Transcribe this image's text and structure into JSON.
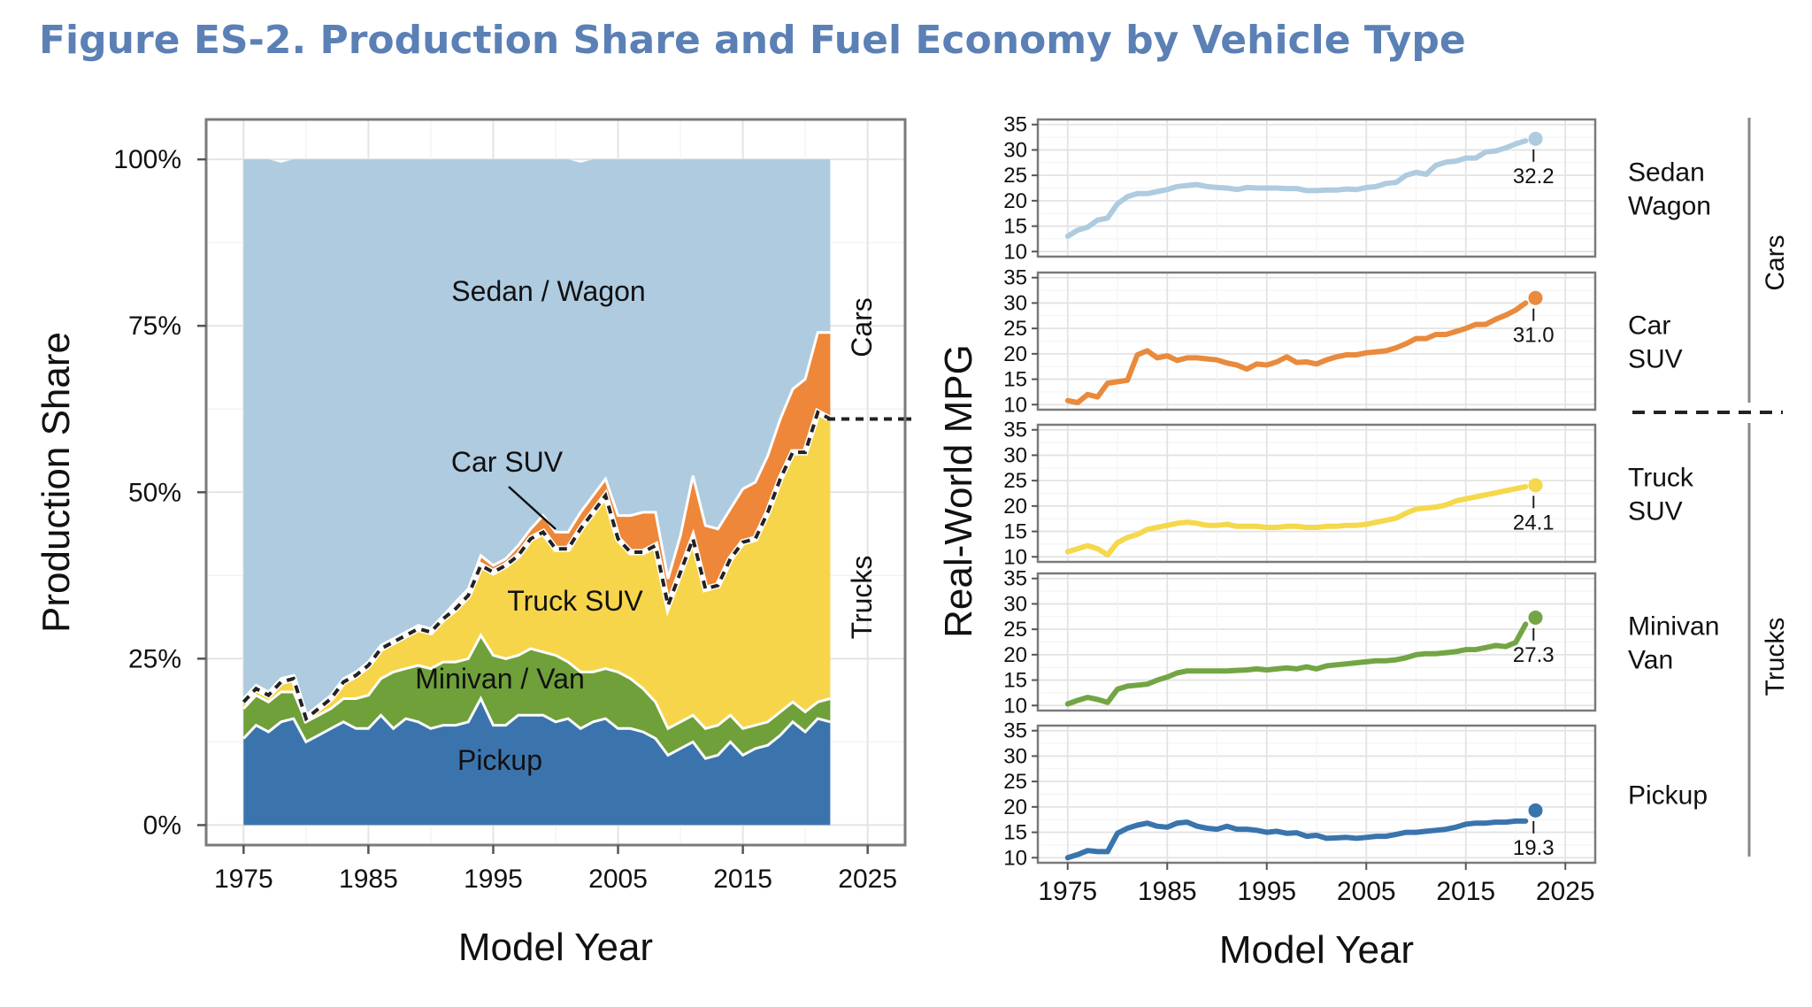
{
  "title": "Figure ES-2. Production Share and Fuel Economy by Vehicle Type",
  "chart_data": [
    {
      "type": "area",
      "stacked": true,
      "xlabel": "Model Year",
      "ylabel": "Production Share",
      "xlim": [
        1972,
        2028
      ],
      "ylim": [
        -0.03,
        1.06
      ],
      "xticks": [
        1975,
        1985,
        1995,
        2005,
        2015,
        2025
      ],
      "yticks": [
        0,
        0.25,
        0.5,
        0.75,
        1.0
      ],
      "ytick_labels": [
        "0%",
        "25%",
        "50%",
        "75%",
        "100%"
      ],
      "grid": true,
      "x": [
        1975,
        1976,
        1977,
        1978,
        1979,
        1980,
        1981,
        1982,
        1983,
        1984,
        1985,
        1986,
        1987,
        1988,
        1989,
        1990,
        1991,
        1992,
        1993,
        1994,
        1995,
        1996,
        1997,
        1998,
        1999,
        2000,
        2001,
        2002,
        2003,
        2004,
        2005,
        2006,
        2007,
        2008,
        2009,
        2010,
        2011,
        2012,
        2013,
        2014,
        2015,
        2016,
        2017,
        2018,
        2019,
        2020,
        2021,
        2022
      ],
      "series": [
        {
          "name": "Pickup",
          "color": "#3b74ad",
          "values": [
            0.13,
            0.15,
            0.14,
            0.155,
            0.16,
            0.125,
            0.135,
            0.145,
            0.155,
            0.145,
            0.145,
            0.165,
            0.145,
            0.16,
            0.155,
            0.145,
            0.15,
            0.15,
            0.155,
            0.19,
            0.15,
            0.15,
            0.165,
            0.165,
            0.165,
            0.155,
            0.16,
            0.145,
            0.155,
            0.16,
            0.145,
            0.145,
            0.14,
            0.13,
            0.105,
            0.115,
            0.125,
            0.1,
            0.105,
            0.125,
            0.105,
            0.115,
            0.12,
            0.135,
            0.155,
            0.14,
            0.16,
            0.155
          ]
        },
        {
          "name": "Minivan / Van",
          "color": "#6fa03a",
          "values": [
            0.045,
            0.045,
            0.045,
            0.045,
            0.04,
            0.03,
            0.03,
            0.03,
            0.035,
            0.045,
            0.05,
            0.055,
            0.085,
            0.075,
            0.085,
            0.09,
            0.095,
            0.095,
            0.095,
            0.095,
            0.105,
            0.1,
            0.09,
            0.1,
            0.095,
            0.1,
            0.085,
            0.085,
            0.075,
            0.075,
            0.085,
            0.075,
            0.065,
            0.055,
            0.04,
            0.04,
            0.04,
            0.045,
            0.045,
            0.04,
            0.04,
            0.035,
            0.035,
            0.035,
            0.03,
            0.03,
            0.025,
            0.035
          ]
        },
        {
          "name": "Truck SUV",
          "color": "#f7d54a",
          "values": [
            0.01,
            0.01,
            0.01,
            0.015,
            0.02,
            0.005,
            0.01,
            0.015,
            0.025,
            0.035,
            0.045,
            0.045,
            0.045,
            0.05,
            0.055,
            0.055,
            0.065,
            0.08,
            0.095,
            0.105,
            0.125,
            0.14,
            0.15,
            0.165,
            0.18,
            0.16,
            0.17,
            0.215,
            0.24,
            0.26,
            0.2,
            0.19,
            0.205,
            0.235,
            0.185,
            0.225,
            0.265,
            0.21,
            0.21,
            0.235,
            0.28,
            0.28,
            0.315,
            0.35,
            0.375,
            0.39,
            0.435,
            0.42
          ]
        },
        {
          "name": "Car SUV",
          "color": "#ee873a",
          "values": [
            0.005,
            0.005,
            0.005,
            0.005,
            0.005,
            0.005,
            0.005,
            0.005,
            0.005,
            0.005,
            0.005,
            0.005,
            0.005,
            0.005,
            0.005,
            0.005,
            0.005,
            0.01,
            0.01,
            0.015,
            0.01,
            0.01,
            0.015,
            0.015,
            0.025,
            0.025,
            0.025,
            0.025,
            0.025,
            0.025,
            0.035,
            0.055,
            0.06,
            0.05,
            0.04,
            0.055,
            0.095,
            0.095,
            0.085,
            0.075,
            0.08,
            0.085,
            0.085,
            0.09,
            0.095,
            0.11,
            0.12,
            0.13
          ]
        },
        {
          "name": "Sedan / Wagon",
          "color": "#aecbe0",
          "values": [
            0.81,
            0.79,
            0.8,
            0.775,
            0.775,
            0.835,
            0.82,
            0.805,
            0.78,
            0.77,
            0.755,
            0.73,
            0.72,
            0.71,
            0.7,
            0.705,
            0.685,
            0.665,
            0.645,
            0.595,
            0.61,
            0.6,
            0.58,
            0.555,
            0.535,
            0.56,
            0.56,
            0.525,
            0.505,
            0.48,
            0.535,
            0.535,
            0.53,
            0.53,
            0.63,
            0.565,
            0.475,
            0.55,
            0.555,
            0.525,
            0.495,
            0.485,
            0.445,
            0.39,
            0.345,
            0.33,
            0.26,
            0.26
          ]
        }
      ],
      "annotations": {
        "sedan": "Sedan / Wagon",
        "carsuv": "Car SUV",
        "trucksuv": "Truck SUV",
        "minivan": "Minivan / Van",
        "pickup": "Pickup"
      },
      "side_labels": {
        "cars": "Cars",
        "trucks": "Trucks"
      }
    },
    {
      "type": "line",
      "facets": true,
      "xlabel": "Model Year",
      "ylabel": "Real-World MPG",
      "xlim": [
        1972,
        2028
      ],
      "ylim": [
        9,
        36
      ],
      "xticks": [
        1975,
        1985,
        1995,
        2005,
        2015,
        2025
      ],
      "yticks": [
        10,
        15,
        20,
        25,
        30,
        35
      ],
      "grid": true,
      "x": [
        1975,
        1976,
        1977,
        1978,
        1979,
        1980,
        1981,
        1982,
        1983,
        1984,
        1985,
        1986,
        1987,
        1988,
        1989,
        1990,
        1991,
        1992,
        1993,
        1994,
        1995,
        1996,
        1997,
        1998,
        1999,
        2000,
        2001,
        2002,
        2003,
        2004,
        2005,
        2006,
        2007,
        2008,
        2009,
        2010,
        2011,
        2012,
        2013,
        2014,
        2015,
        2016,
        2017,
        2018,
        2019,
        2020,
        2021
      ],
      "series": [
        {
          "name": "Sedan Wagon",
          "color": "#aecbe0",
          "end_value": 32.2,
          "end_label": "32.2",
          "values": [
            13.0,
            14.2,
            14.8,
            16.2,
            16.6,
            19.4,
            20.8,
            21.4,
            21.4,
            21.8,
            22.2,
            22.8,
            23.0,
            23.2,
            22.8,
            22.6,
            22.5,
            22.2,
            22.6,
            22.5,
            22.5,
            22.5,
            22.4,
            22.4,
            22.0,
            22.0,
            22.1,
            22.1,
            22.3,
            22.2,
            22.6,
            22.8,
            23.4,
            23.6,
            25.0,
            25.6,
            25.2,
            27.0,
            27.6,
            27.8,
            28.4,
            28.4,
            29.6,
            29.8,
            30.4,
            31.2,
            31.8
          ]
        },
        {
          "name": "Car SUV",
          "color": "#e98a3d",
          "end_value": 31.0,
          "end_label": "31.0",
          "values": [
            10.8,
            10.4,
            12.0,
            11.5,
            14.2,
            14.5,
            14.8,
            19.8,
            20.6,
            19.2,
            19.6,
            18.7,
            19.2,
            19.2,
            19.0,
            18.8,
            18.2,
            17.8,
            17.0,
            18.0,
            17.8,
            18.4,
            19.4,
            18.3,
            18.4,
            18.0,
            18.8,
            19.4,
            19.8,
            19.8,
            20.2,
            20.4,
            20.6,
            21.2,
            22.0,
            23.0,
            23.0,
            23.8,
            23.8,
            24.4,
            25.0,
            25.8,
            25.8,
            26.8,
            27.6,
            28.6,
            30.0
          ]
        },
        {
          "name": "Truck SUV",
          "color": "#f5d84c",
          "end_value": 24.1,
          "end_label": "24.1",
          "values": [
            11.0,
            11.6,
            12.2,
            11.6,
            10.4,
            12.8,
            13.8,
            14.4,
            15.4,
            15.8,
            16.2,
            16.6,
            16.8,
            16.6,
            16.2,
            16.2,
            16.4,
            16.0,
            16.0,
            16.0,
            15.8,
            15.8,
            16.0,
            16.0,
            15.8,
            15.8,
            16.0,
            16.0,
            16.2,
            16.2,
            16.4,
            16.8,
            17.2,
            17.6,
            18.6,
            19.4,
            19.6,
            19.8,
            20.2,
            21.0,
            21.4,
            21.8,
            22.2,
            22.6,
            23.0,
            23.4,
            23.8
          ]
        },
        {
          "name": "Minivan Van",
          "color": "#73a544",
          "end_value": 27.3,
          "end_label": "27.3",
          "values": [
            10.3,
            11.0,
            11.6,
            11.2,
            10.6,
            13.2,
            13.8,
            14.0,
            14.2,
            15.0,
            15.6,
            16.4,
            16.8,
            16.8,
            16.8,
            16.8,
            16.8,
            16.9,
            17.0,
            17.2,
            17.0,
            17.2,
            17.4,
            17.2,
            17.6,
            17.2,
            17.8,
            18.0,
            18.2,
            18.4,
            18.6,
            18.8,
            18.8,
            19.0,
            19.4,
            20.0,
            20.2,
            20.2,
            20.4,
            20.6,
            21.0,
            21.0,
            21.4,
            21.8,
            21.6,
            22.4,
            26.0
          ]
        },
        {
          "name": "Pickup",
          "color": "#3a74ad",
          "end_value": 19.3,
          "end_label": "19.3",
          "values": [
            10.0,
            10.6,
            11.4,
            11.2,
            11.2,
            14.8,
            15.8,
            16.4,
            16.8,
            16.2,
            16.0,
            16.8,
            17.0,
            16.2,
            15.8,
            15.6,
            16.2,
            15.6,
            15.6,
            15.4,
            15.0,
            15.2,
            14.8,
            14.9,
            14.2,
            14.4,
            13.8,
            13.9,
            14.0,
            13.8,
            14.0,
            14.2,
            14.2,
            14.6,
            15.0,
            15.0,
            15.2,
            15.4,
            15.6,
            16.0,
            16.6,
            16.8,
            16.8,
            17.0,
            17.0,
            17.2,
            17.2
          ]
        }
      ],
      "strip_labels": [
        [
          "Sedan",
          "Wagon"
        ],
        [
          "Car",
          "SUV"
        ],
        [
          "Truck",
          "SUV"
        ],
        [
          "Minivan",
          "Van"
        ],
        [
          "Pickup"
        ]
      ],
      "group_labels": {
        "cars": "Cars",
        "trucks": "Trucks"
      }
    }
  ]
}
